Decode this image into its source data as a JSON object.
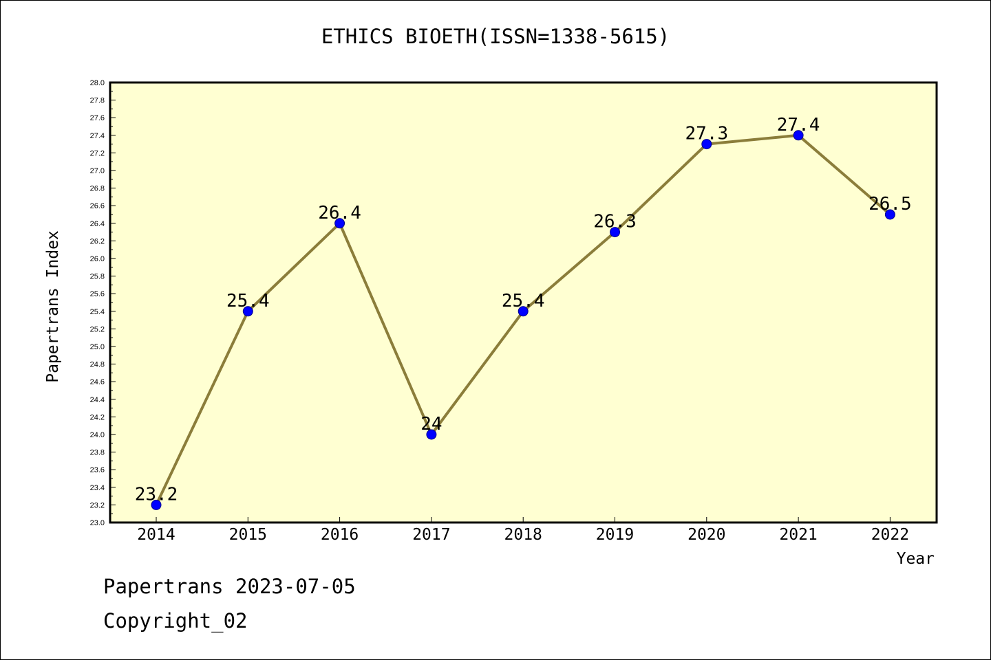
{
  "title": "ETHICS BIOETH(ISSN=1338-5615)",
  "footer": {
    "line1": "Papertrans 2023-07-05",
    "line2": "Copyright_02"
  },
  "colors": {
    "plot_background": "#ffffd2",
    "line": "#8b7d3a",
    "marker_fill": "#0000ff",
    "marker_stroke": "#00008b"
  },
  "chart_data": {
    "type": "line",
    "title": "ETHICS BIOETH(ISSN=1338-5615)",
    "xlabel": "Year",
    "ylabel": "Papertrans Index",
    "categories": [
      "2014",
      "2015",
      "2016",
      "2017",
      "2018",
      "2019",
      "2020",
      "2021",
      "2022"
    ],
    "series": [
      {
        "values": [
          23.2,
          25.4,
          26.4,
          24,
          25.4,
          26.3,
          27.3,
          27.4,
          26.5
        ],
        "labels": [
          "23.2",
          "25.4",
          "26.4",
          "24",
          "25.4",
          "26.3",
          "27.3",
          "27.4",
          "26.5"
        ]
      }
    ],
    "ylim": [
      23.0,
      28.0
    ],
    "ytick_step": 0.2,
    "yticks": [
      "23.0",
      "23.2",
      "23.4",
      "23.6",
      "23.8",
      "24.0",
      "24.2",
      "24.4",
      "24.6",
      "24.8",
      "25.0",
      "25.2",
      "25.4",
      "25.6",
      "25.8",
      "26.0",
      "26.2",
      "26.4",
      "26.6",
      "26.8",
      "27.0",
      "27.2",
      "27.4",
      "27.6",
      "27.8",
      "28.0"
    ],
    "grid": false,
    "legend": "none"
  }
}
